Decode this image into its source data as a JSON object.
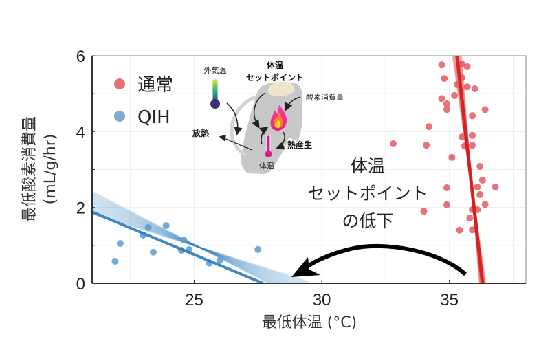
{
  "chart_data": {
    "type": "scatter",
    "title": "",
    "xlabel": "最低体温 (°C)",
    "ylabel_line1": "最低酸素消費量",
    "ylabel_line2": "(mL/g/hr)",
    "xlim": [
      21,
      38
    ],
    "ylim": [
      0,
      6
    ],
    "xticks": [
      25,
      30,
      35
    ],
    "yticks": [
      0,
      2,
      4,
      6
    ],
    "grid": true,
    "legend_placement": "top-left",
    "series": [
      {
        "name": "通常",
        "color": "#e05a5f",
        "line_color": "#d7191c",
        "fit_line": {
          "x": [
            35.3,
            36.3
          ],
          "y": [
            6,
            0
          ]
        },
        "points": [
          [
            34.7,
            5.76
          ],
          [
            35.5,
            5.78
          ],
          [
            35.7,
            5.71
          ],
          [
            34.8,
            5.4
          ],
          [
            35.5,
            5.42
          ],
          [
            35.3,
            5.24
          ],
          [
            35.7,
            5.18
          ],
          [
            36.0,
            5.13
          ],
          [
            34.7,
            4.87
          ],
          [
            35.2,
            4.95
          ],
          [
            34.9,
            4.73
          ],
          [
            34.9,
            4.58
          ],
          [
            36.4,
            4.58
          ],
          [
            35.9,
            4.42
          ],
          [
            34.2,
            4.13
          ],
          [
            32.8,
            3.68
          ],
          [
            34.1,
            3.64
          ],
          [
            35.5,
            3.86
          ],
          [
            35.9,
            3.9
          ],
          [
            35.6,
            3.62
          ],
          [
            35.9,
            3.64
          ],
          [
            35.1,
            3.32
          ],
          [
            36.2,
            3.08
          ],
          [
            36.3,
            2.72
          ],
          [
            36.1,
            2.54
          ],
          [
            36.8,
            2.54
          ],
          [
            34.9,
            2.52
          ],
          [
            36.2,
            2.34
          ],
          [
            36.4,
            2.08
          ],
          [
            34.9,
            2.07
          ],
          [
            35.9,
            1.94
          ],
          [
            36.1,
            1.94
          ],
          [
            34.0,
            1.9
          ],
          [
            35.8,
            1.72
          ],
          [
            35.4,
            1.4
          ],
          [
            35.9,
            1.41
          ]
        ]
      },
      {
        "name": "QIH",
        "color": "#5b9bd0",
        "line_color": "#2b7bba",
        "fit_line": {
          "x": [
            21.0,
            27.7
          ],
          "y": [
            1.88,
            0
          ]
        },
        "points": [
          [
            21.9,
            0.58
          ],
          [
            22.1,
            1.05
          ],
          [
            23.0,
            1.27
          ],
          [
            23.2,
            1.47
          ],
          [
            23.9,
            1.52
          ],
          [
            23.4,
            0.82
          ],
          [
            24.6,
            1.14
          ],
          [
            24.5,
            0.87
          ],
          [
            24.8,
            0.89
          ],
          [
            25.6,
            0.53
          ],
          [
            26.0,
            0.6
          ],
          [
            27.5,
            0.89
          ]
        ]
      }
    ],
    "annotations": {
      "main_text": [
        "体温",
        "セットポイント",
        "の低下"
      ],
      "arrow": "from normal cluster to QIH cluster"
    },
    "inset": {
      "outside_temp": "外気温",
      "setpoint_line1": "体温",
      "setpoint_line2": "セットポイント",
      "oxygen": "酸素消費量",
      "heat_loss": "放熱",
      "heat_production": "熱産生",
      "body_temp": "体温"
    }
  }
}
